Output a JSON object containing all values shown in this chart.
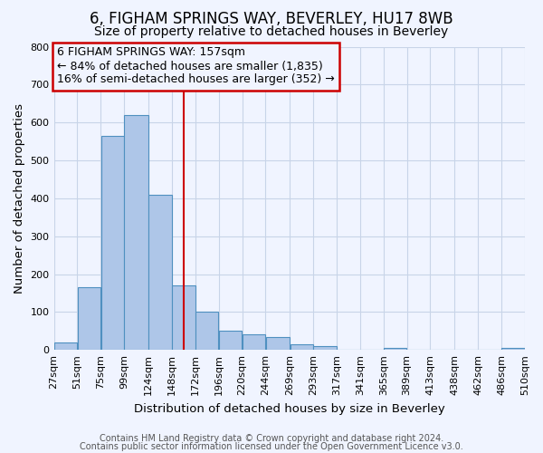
{
  "title": "6, FIGHAM SPRINGS WAY, BEVERLEY, HU17 8WB",
  "subtitle": "Size of property relative to detached houses in Beverley",
  "xlabel": "Distribution of detached houses by size in Beverley",
  "ylabel": "Number of detached properties",
  "bar_left_edges": [
    27,
    51,
    75,
    99,
    124,
    148,
    172,
    196,
    220,
    244,
    269,
    293,
    317,
    341,
    365,
    389,
    413,
    438,
    462,
    486
  ],
  "bar_widths": [
    24,
    24,
    24,
    25,
    24,
    24,
    24,
    24,
    24,
    25,
    24,
    24,
    24,
    24,
    24,
    24,
    25,
    24,
    24,
    24
  ],
  "bar_heights": [
    20,
    165,
    565,
    620,
    410,
    170,
    100,
    50,
    40,
    35,
    15,
    10,
    0,
    0,
    5,
    0,
    0,
    0,
    0,
    5
  ],
  "tick_labels": [
    "27sqm",
    "51sqm",
    "75sqm",
    "99sqm",
    "124sqm",
    "148sqm",
    "172sqm",
    "196sqm",
    "220sqm",
    "244sqm",
    "269sqm",
    "293sqm",
    "317sqm",
    "341sqm",
    "365sqm",
    "389sqm",
    "413sqm",
    "438sqm",
    "462sqm",
    "486sqm",
    "510sqm"
  ],
  "tick_positions": [
    27,
    51,
    75,
    99,
    124,
    148,
    172,
    196,
    220,
    244,
    269,
    293,
    317,
    341,
    365,
    389,
    413,
    438,
    462,
    486,
    510
  ],
  "ylim": [
    0,
    800
  ],
  "yticks": [
    0,
    100,
    200,
    300,
    400,
    500,
    600,
    700,
    800
  ],
  "bar_color": "#aec6e8",
  "bar_edge_color": "#4f90c0",
  "vline_x": 160,
  "vline_color": "#cc0000",
  "annotation_box_text": "6 FIGHAM SPRINGS WAY: 157sqm\n← 84% of detached houses are smaller (1,835)\n16% of semi-detached houses are larger (352) →",
  "annotation_box_color": "#cc0000",
  "footer_line1": "Contains HM Land Registry data © Crown copyright and database right 2024.",
  "footer_line2": "Contains public sector information licensed under the Open Government Licence v3.0.",
  "background_color": "#f0f4ff",
  "grid_color": "#c8d4e8",
  "title_fontsize": 12,
  "subtitle_fontsize": 10,
  "axis_label_fontsize": 9.5,
  "tick_fontsize": 8,
  "footer_fontsize": 7,
  "annotation_fontsize": 9
}
